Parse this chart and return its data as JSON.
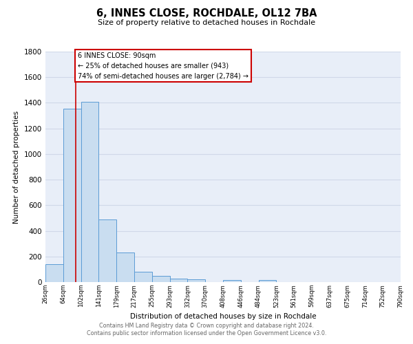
{
  "title": "6, INNES CLOSE, ROCHDALE, OL12 7BA",
  "subtitle": "Size of property relative to detached houses in Rochdale",
  "xlabel": "Distribution of detached houses by size in Rochdale",
  "ylabel": "Number of detached properties",
  "bin_labels": [
    "26sqm",
    "64sqm",
    "102sqm",
    "141sqm",
    "179sqm",
    "217sqm",
    "255sqm",
    "293sqm",
    "332sqm",
    "370sqm",
    "408sqm",
    "446sqm",
    "484sqm",
    "523sqm",
    "561sqm",
    "599sqm",
    "637sqm",
    "675sqm",
    "714sqm",
    "752sqm",
    "790sqm"
  ],
  "bar_heights": [
    140,
    1355,
    1410,
    490,
    230,
    80,
    50,
    25,
    20,
    0,
    15,
    0,
    15,
    0,
    0,
    0,
    0,
    0,
    0,
    0
  ],
  "bar_color": "#c9ddf0",
  "bar_edge_color": "#5b9bd5",
  "red_line_x": 1.7,
  "annotation_title": "6 INNES CLOSE: 90sqm",
  "annotation_line1": "← 25% of detached houses are smaller (943)",
  "annotation_line2": "74% of semi-detached houses are larger (2,784) →",
  "ylim": [
    0,
    1800
  ],
  "yticks": [
    0,
    200,
    400,
    600,
    800,
    1000,
    1200,
    1400,
    1600,
    1800
  ],
  "footer1": "Contains HM Land Registry data © Crown copyright and database right 2024.",
  "footer2": "Contains public sector information licensed under the Open Government Licence v3.0.",
  "bg_color": "#ffffff",
  "plot_bg_color": "#e8eef8",
  "grid_color": "#d0d8e8"
}
